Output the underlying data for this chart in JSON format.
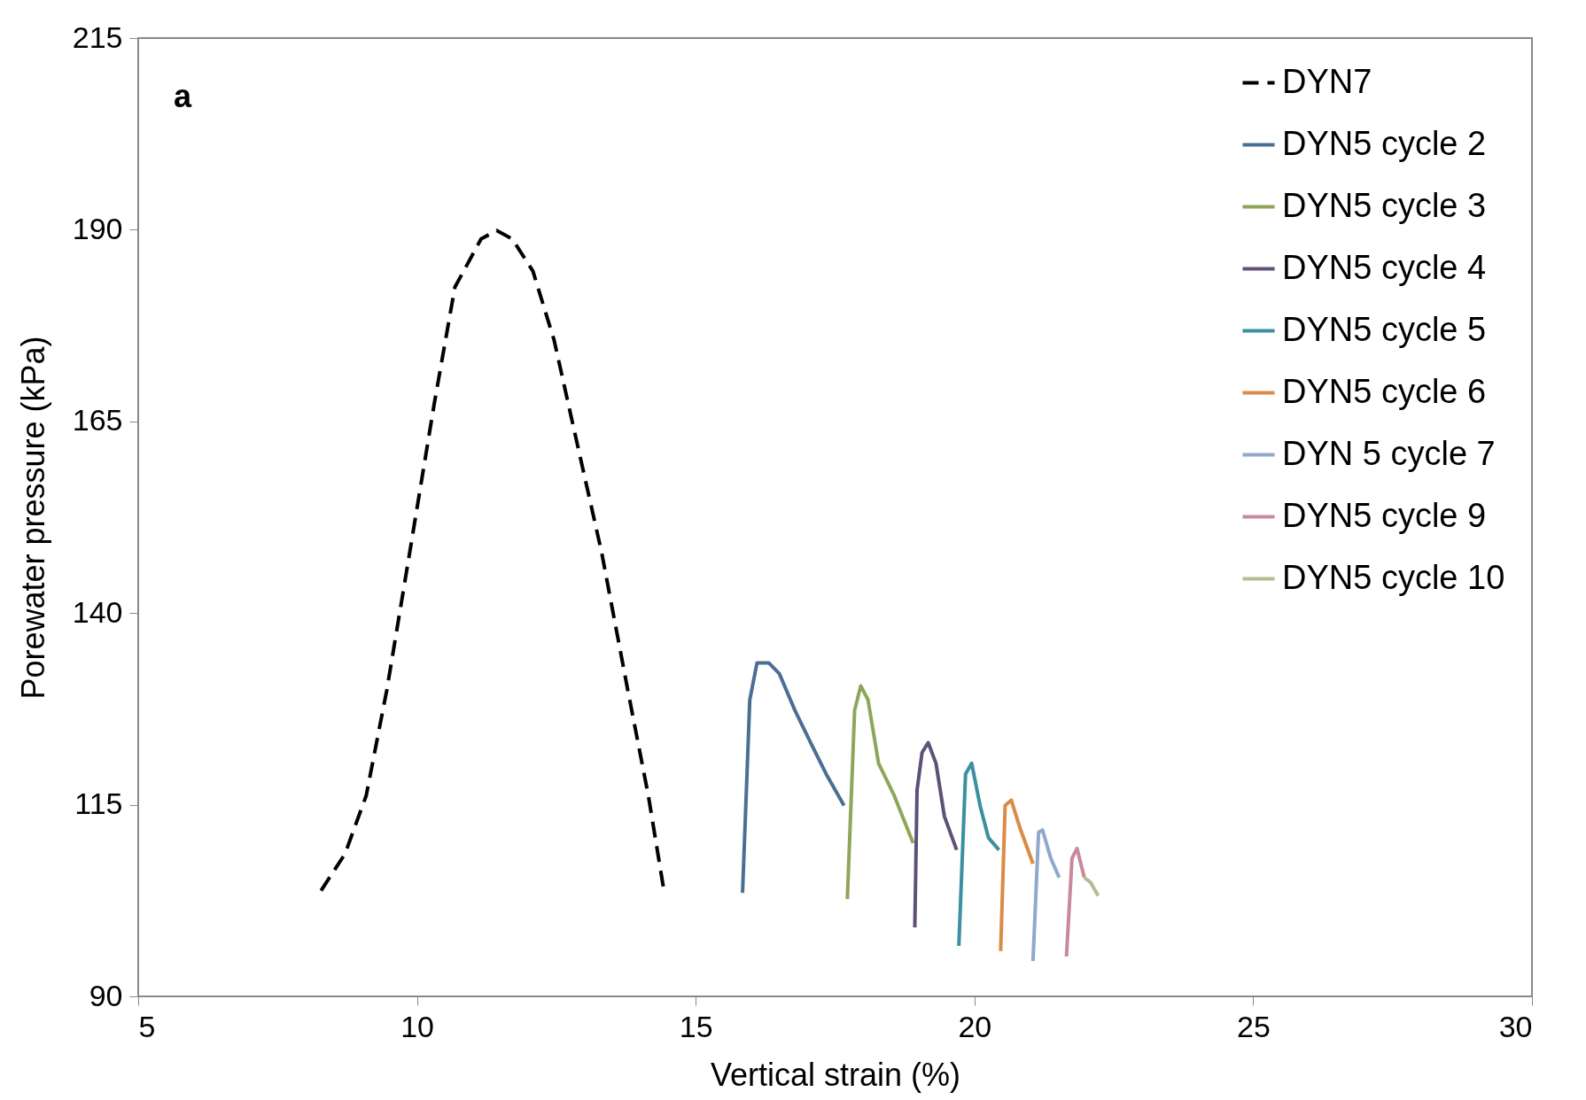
{
  "chart_data": {
    "type": "line",
    "xlabel": "Vertical strain (%)",
    "ylabel": "Porewater pressure (kPa)",
    "xlim": [
      5,
      30
    ],
    "xticks": [
      5,
      10,
      15,
      20,
      25,
      30
    ],
    "ylim": [
      90,
      215
    ],
    "yticks": [
      90,
      115,
      140,
      165,
      190,
      215
    ],
    "grid": false,
    "legend": "top right",
    "annotations": [
      "a"
    ],
    "series": [
      {
        "name": "DYN7",
        "color": "#000000",
        "line_style": "dashed",
        "x": [
          8.28,
          8.71,
          9.09,
          9.46,
          9.84,
          10.31,
          10.68,
          11.15,
          11.43,
          11.71,
          12.08,
          12.46,
          12.84,
          13.31,
          13.78,
          14.15,
          14.43
        ],
        "values": [
          103.8,
          108.6,
          116.2,
          130,
          146.6,
          167.3,
          182.5,
          188.8,
          189.9,
          188.8,
          184.6,
          175.6,
          163.2,
          148,
          130,
          116.2,
          103.8
        ]
      },
      {
        "name": "DYN5 cycle 2",
        "color": "#4a6f93",
        "x": [
          15.84,
          15.97,
          16.1,
          16.31,
          16.5,
          16.78,
          17.06,
          17.34,
          17.66
        ],
        "values": [
          103.5,
          128.7,
          133.5,
          133.5,
          132.1,
          127.3,
          123.1,
          119,
          114.9
        ]
      },
      {
        "name": "DYN5 cycle 3",
        "color": "#8fa65a",
        "x": [
          17.72,
          17.85,
          17.96,
          18.09,
          18.28,
          18.56,
          18.9
        ],
        "values": [
          102.7,
          127.3,
          130.5,
          128.7,
          120.4,
          116.2,
          110
        ]
      },
      {
        "name": "DYN5 cycle 4",
        "color": "#5e5078",
        "x": [
          18.93,
          18.97,
          19.06,
          19.17,
          19.31,
          19.46,
          19.68
        ],
        "values": [
          99,
          116.9,
          121.8,
          123.1,
          120.4,
          113.5,
          109.1
        ]
      },
      {
        "name": "DYN5 cycle 5",
        "color": "#3a8fa0",
        "x": [
          19.72,
          19.84,
          19.95,
          20.1,
          20.25,
          20.44
        ],
        "values": [
          96.6,
          119,
          120.4,
          114.9,
          110.7,
          109.1
        ]
      },
      {
        "name": "DYN5 cycle 6",
        "color": "#d98c45",
        "x": [
          20.47,
          20.55,
          20.66,
          20.81,
          21.05
        ],
        "values": [
          95.9,
          114.9,
          115.6,
          112.1,
          107.3
        ]
      },
      {
        "name": "DYN 5 cycle 7",
        "color": "#8fa8cc",
        "x": [
          21.05,
          21.15,
          21.22,
          21.37,
          21.52
        ],
        "values": [
          94.6,
          111.4,
          111.7,
          108,
          105.5
        ]
      },
      {
        "name": "DYN5 cycle 9",
        "color": "#c88a9a",
        "x": [
          21.65,
          21.75,
          21.84,
          21.97
        ],
        "values": [
          95.2,
          108,
          109.3,
          105.5
        ]
      },
      {
        "name": "DYN5 cycle 10",
        "color": "#b3bd95",
        "x": [
          21.97,
          22.08,
          22.22
        ],
        "values": [
          105.5,
          104.9,
          103.1
        ]
      }
    ]
  }
}
